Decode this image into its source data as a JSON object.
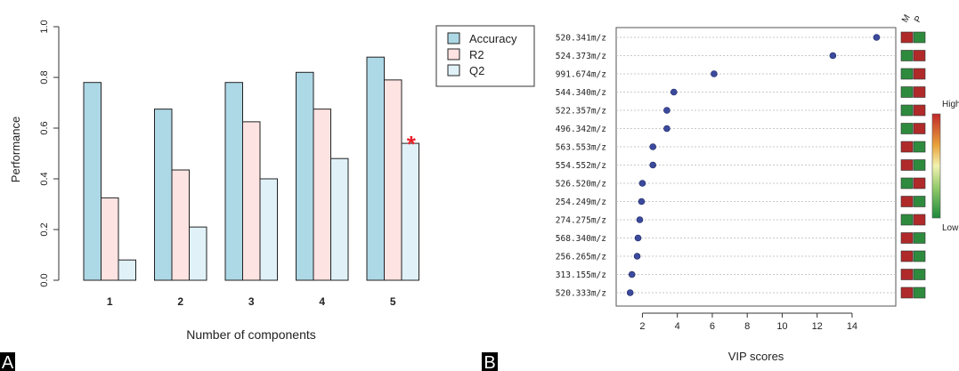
{
  "panels": {
    "a": {
      "letter": "A"
    },
    "b": {
      "letter": "B"
    }
  },
  "colors": {
    "accuracy": "#add8e6",
    "r2": "#fde3e1",
    "q2": "#e0f1f8",
    "dot": "#3b4a9c",
    "m_red": "#b02a2a",
    "p_green": "#2e8b3e",
    "panel_letter_bg": "#000000"
  },
  "chart_data": [
    {
      "type": "bar",
      "xlabel": "Number of components",
      "ylabel": "Performance",
      "categories": [
        "1",
        "2",
        "3",
        "4",
        "5"
      ],
      "ylim": [
        0,
        1.0
      ],
      "yticks": [
        "0.0",
        "0.2",
        "0.4",
        "0.6",
        "0.8",
        "1.0"
      ],
      "legend_position": "top-right",
      "series": [
        {
          "name": "Accuracy",
          "values": [
            0.78,
            0.675,
            0.78,
            0.82,
            0.88
          ]
        },
        {
          "name": "R2",
          "values": [
            0.325,
            0.435,
            0.625,
            0.675,
            0.79
          ]
        },
        {
          "name": "Q2",
          "values": [
            0.08,
            0.21,
            0.4,
            0.48,
            0.54
          ]
        }
      ],
      "annotation": {
        "text": "*",
        "category": "5",
        "series": "Q2"
      }
    },
    {
      "type": "scatter",
      "xlabel": "VIP scores",
      "xlim": [
        0.5,
        16.5
      ],
      "xticks": [
        "2",
        "4",
        "6",
        "8",
        "10",
        "12",
        "14"
      ],
      "features": [
        "520.341m/z",
        "524.373m/z",
        "991.674m/z",
        "544.340m/z",
        "522.357m/z",
        "496.342m/z",
        "563.553m/z",
        "554.552m/z",
        "526.520m/z",
        "254.249m/z",
        "274.275m/z",
        "568.340m/z",
        "256.265m/z",
        "313.155m/z",
        "520.333m/z"
      ],
      "values": [
        15.4,
        12.9,
        6.1,
        3.8,
        3.4,
        3.4,
        2.6,
        2.6,
        2.0,
        1.95,
        1.85,
        1.75,
        1.7,
        1.4,
        1.3
      ],
      "heatmap_columns": [
        "M",
        "P"
      ],
      "heatmap": [
        [
          "High",
          "Low"
        ],
        [
          "Low",
          "High"
        ],
        [
          "Low",
          "High"
        ],
        [
          "Low",
          "High"
        ],
        [
          "Low",
          "High"
        ],
        [
          "Low",
          "High"
        ],
        [
          "High",
          "Low"
        ],
        [
          "High",
          "Low"
        ],
        [
          "Low",
          "High"
        ],
        [
          "High",
          "Low"
        ],
        [
          "Low",
          "High"
        ],
        [
          "High",
          "Low"
        ],
        [
          "High",
          "Low"
        ],
        [
          "High",
          "Low"
        ],
        [
          "High",
          "Low"
        ]
      ],
      "colorbar_labels": {
        "high": "High",
        "low": "Low"
      }
    }
  ]
}
